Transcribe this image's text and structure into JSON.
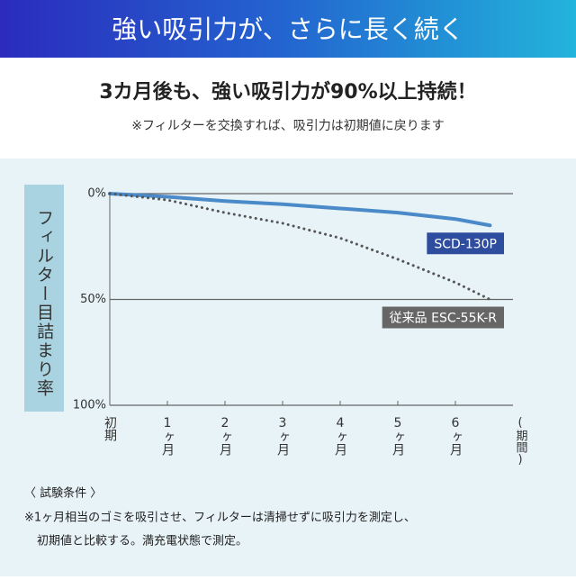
{
  "banner_title": "強い吸引力が、さらに長く続く",
  "heading": "3カ月後も、強い吸引力が90%以上持続！",
  "subheading": "※フィルターを交換すれば、吸引力は初期値に戻ります",
  "chart_data": {
    "type": "line",
    "y_label": "フィルター目詰まり率",
    "x_label": "(期間)",
    "x": [
      0,
      1,
      2,
      3,
      4,
      5,
      6,
      6.6
    ],
    "xlim": [
      0,
      7
    ],
    "xticks": [
      {
        "value": 0,
        "label": "初期"
      },
      {
        "value": 1,
        "label": "1ヶ月"
      },
      {
        "value": 2,
        "label": "2ヶ月"
      },
      {
        "value": 3,
        "label": "3ヶ月"
      },
      {
        "value": 4,
        "label": "4ヶ月"
      },
      {
        "value": 5,
        "label": "5ヶ月"
      },
      {
        "value": 6,
        "label": "6ヶ月"
      }
    ],
    "ylim": [
      0,
      100
    ],
    "y_inverted": true,
    "yticks": [
      {
        "value": 0,
        "label": "0%"
      },
      {
        "value": 50,
        "label": "50%"
      },
      {
        "value": 100,
        "label": "100%"
      }
    ],
    "grid": true,
    "series": [
      {
        "name": "SCD-130P",
        "color": "#4a8ac8",
        "label_color": "#2e4d9e",
        "style": "solid",
        "values": [
          0,
          1.5,
          3.5,
          5,
          7,
          9,
          12,
          15
        ]
      },
      {
        "name": "従来品 ESC-55K-R",
        "color": "#555555",
        "label_color": "#666666",
        "style": "dotted",
        "values": [
          0,
          3,
          9,
          14,
          21,
          31,
          42,
          50
        ]
      }
    ]
  },
  "notes": [
    "〈 試験条件 〉",
    "※1ヶ月相当のゴミを吸引させ、フィルターは清掃せずに吸引力を測定し、",
    "初期値と比較する。満充電状態で測定。"
  ]
}
